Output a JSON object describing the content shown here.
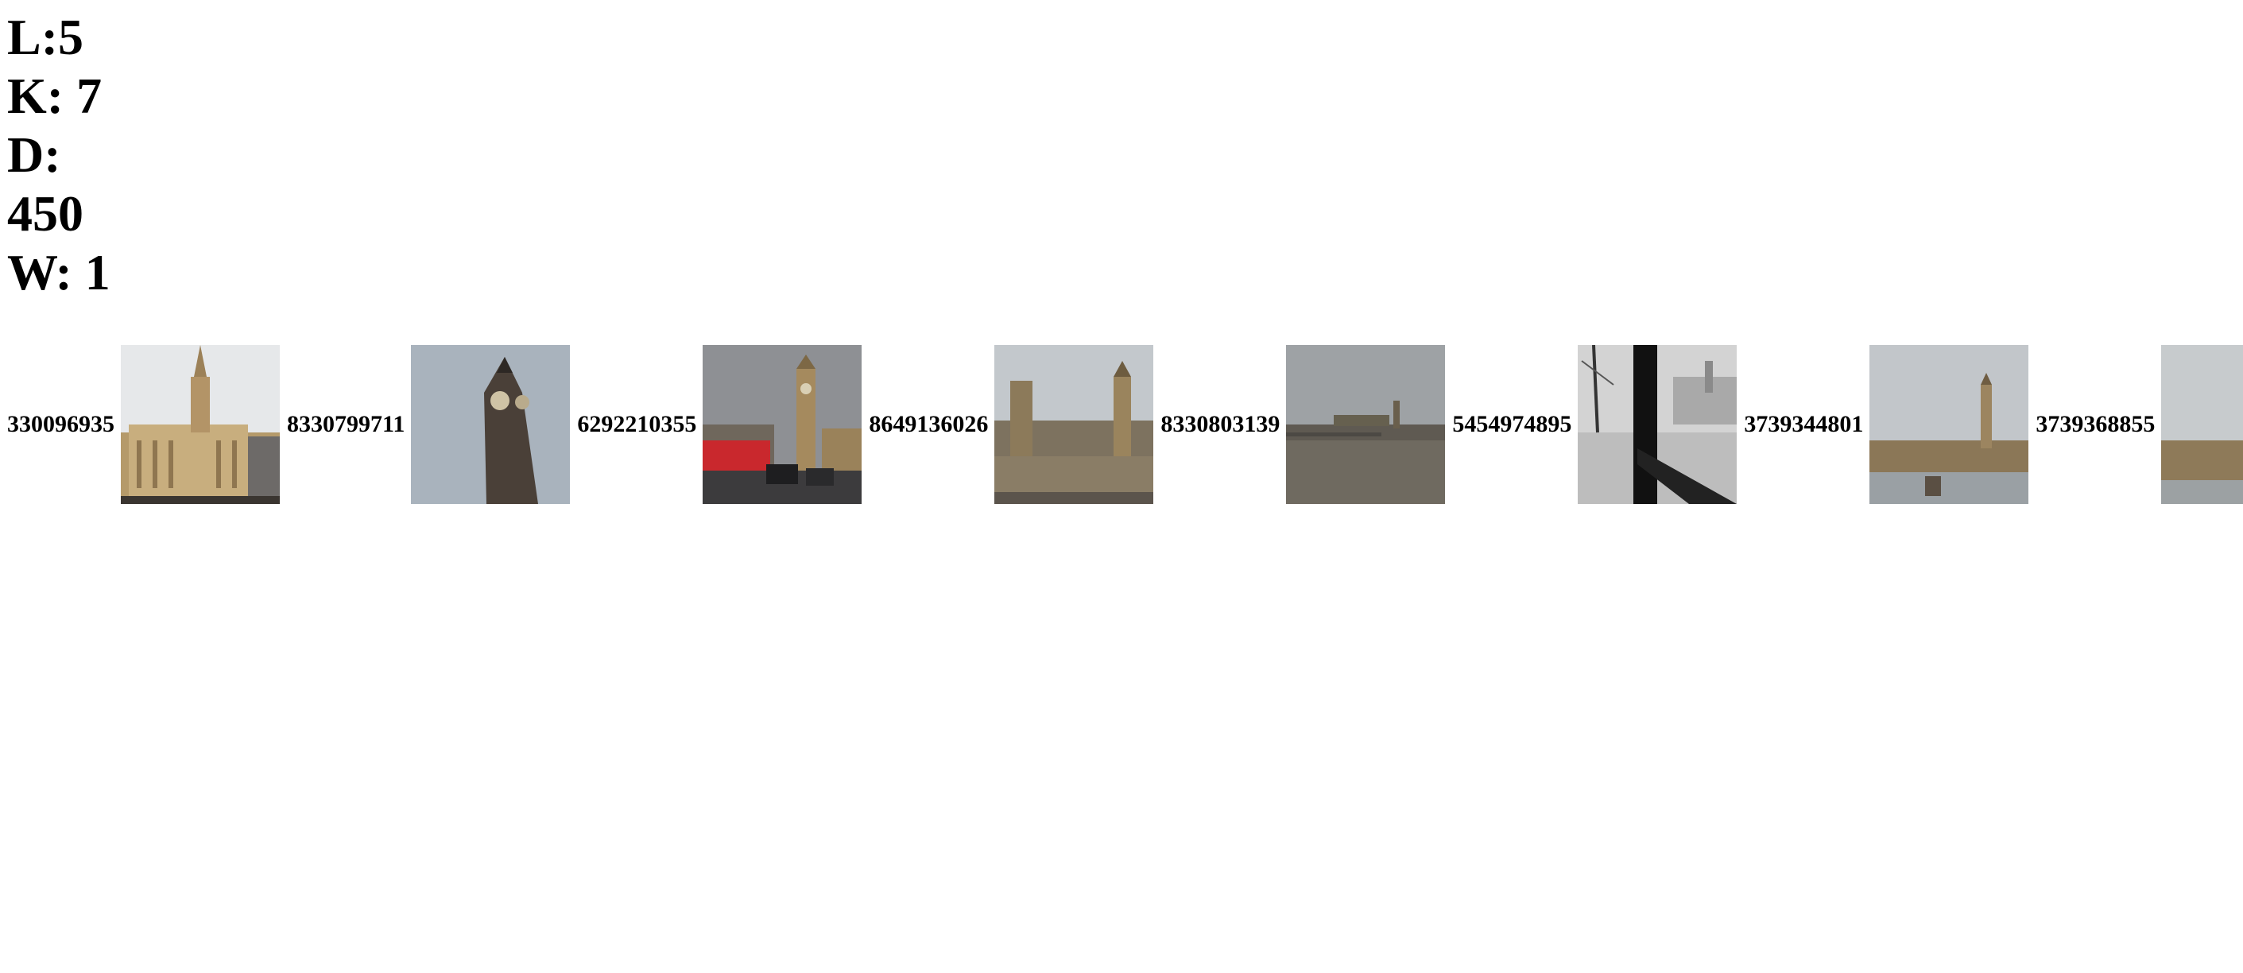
{
  "params": {
    "l_line": "L:5",
    "k_line": "K: 7",
    "d_line": "D:",
    "d_value": "450",
    "w_line": "W: 1"
  },
  "results": [
    {
      "id": "330096935",
      "scene": "palace-facade"
    },
    {
      "id": "8330799711",
      "scene": "clock-tower-closeup"
    },
    {
      "id": "6292210355",
      "scene": "street-bus-tower"
    },
    {
      "id": "8649136026",
      "scene": "aerial-palace"
    },
    {
      "id": "8330803139",
      "scene": "river-bridge-palace"
    },
    {
      "id": "5454974895",
      "scene": "bw-embankment"
    },
    {
      "id": "3739344801",
      "scene": "palace-across-river"
    },
    {
      "id": "3739368855",
      "scene": "palace-partial"
    }
  ]
}
